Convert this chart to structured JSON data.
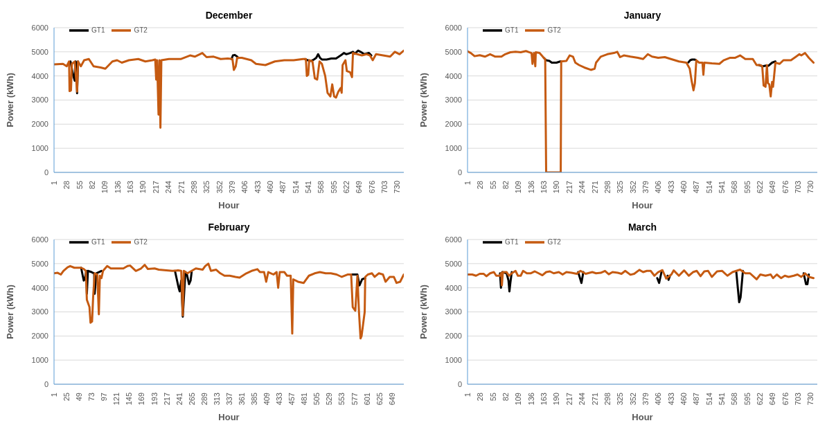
{
  "chart_data": [
    {
      "type": "line",
      "title": "December",
      "xlabel": "Hour",
      "ylabel": "Power (kWh)",
      "xlim": [
        1,
        744
      ],
      "xticks": [
        1,
        28,
        55,
        82,
        109,
        136,
        163,
        190,
        217,
        244,
        271,
        298,
        325,
        352,
        379,
        406,
        433,
        460,
        487,
        514,
        541,
        568,
        595,
        622,
        649,
        676,
        703,
        730
      ],
      "ylim": [
        0,
        6000
      ],
      "yticks": [
        0,
        1000,
        2000,
        3000,
        4000,
        5000,
        6000
      ],
      "grid": "y",
      "legend": "top left",
      "series": [
        {
          "name": "GT1",
          "color": "#000000",
          "x": [
            36,
            42,
            45,
            47,
            49,
            50,
            52,
            60,
            378,
            381,
            385,
            390,
            393,
            450,
            534,
            540,
            547,
            553,
            558,
            562,
            566,
            570,
            580,
            590,
            600,
            610,
            617,
            622,
            630,
            636,
            640,
            647,
            652,
            660,
            670,
            675
          ],
          "values": [
            4600,
            4000,
            3800,
            4600,
            4500,
            3280,
            4600,
            null,
            4700,
            4850,
            4870,
            4800,
            4750,
            null,
            4700,
            4650,
            4620,
            4680,
            4750,
            4900,
            4750,
            4680,
            4680,
            4720,
            4720,
            4850,
            4950,
            4900,
            4950,
            5000,
            4920,
            5050,
            5000,
            4900,
            4950,
            4850
          ]
        },
        {
          "name": "GT2",
          "color": "#c55a11",
          "x": [
            1,
            20,
            28,
            33,
            34,
            37,
            39,
            45,
            50,
            52,
            58,
            65,
            75,
            85,
            100,
            110,
            125,
            135,
            145,
            160,
            180,
            195,
            210,
            216,
            218,
            220,
            223,
            225,
            227,
            229,
            245,
            270,
            290,
            300,
            316,
            325,
            340,
            355,
            370,
            380,
            383,
            387,
            390,
            400,
            420,
            430,
            450,
            470,
            490,
            510,
            530,
            536,
            538,
            541,
            543,
            550,
            555,
            560,
            565,
            570,
            577,
            582,
            588,
            592,
            596,
            600,
            605,
            610,
            612,
            614,
            620,
            623,
            630,
            634,
            636,
            645,
            655,
            665,
            672,
            678,
            685,
            700,
            715,
            725,
            735,
            744
          ],
          "values": [
            4480,
            4500,
            4400,
            4600,
            3370,
            3400,
            4500,
            4600,
            3350,
            4600,
            4400,
            4650,
            4700,
            4400,
            4350,
            4300,
            4600,
            4650,
            4550,
            4650,
            4700,
            4600,
            4650,
            4680,
            3850,
            4650,
            2400,
            4650,
            1850,
            4650,
            4700,
            4700,
            4850,
            4800,
            4950,
            4780,
            4800,
            4700,
            4720,
            4700,
            4250,
            4400,
            4750,
            4750,
            4650,
            4500,
            4450,
            4600,
            4650,
            4650,
            4700,
            4700,
            4000,
            4050,
            4650,
            4600,
            3900,
            3850,
            4600,
            4500,
            4000,
            3300,
            3150,
            3650,
            3150,
            3100,
            3350,
            3500,
            3300,
            4450,
            4650,
            4200,
            4150,
            3950,
            4950,
            4900,
            4850,
            4900,
            4850,
            4650,
            4900,
            4850,
            4800,
            5000,
            4900,
            5050
          ]
        }
      ]
    },
    {
      "type": "line",
      "title": "January",
      "xlabel": "Hour",
      "ylabel": "Power (kWh)",
      "xlim": [
        1,
        744
      ],
      "xticks": [
        1,
        28,
        55,
        82,
        109,
        136,
        163,
        190,
        217,
        244,
        271,
        298,
        325,
        352,
        379,
        406,
        433,
        460,
        487,
        514,
        541,
        568,
        595,
        622,
        649,
        676,
        703,
        730
      ],
      "ylim": [
        0,
        6000
      ],
      "yticks": [
        0,
        1000,
        2000,
        3000,
        4000,
        5000,
        6000
      ],
      "grid": "y",
      "legend": "top left",
      "series": [
        {
          "name": "GT1",
          "color": "#000000",
          "x": [
            163,
            168,
            175,
            180,
            190,
            198,
            200,
            300,
            470,
            474,
            478,
            483,
            486,
            550,
            620,
            628,
            635,
            640,
            648,
            655
          ],
          "values": [
            4750,
            4650,
            4620,
            4550,
            4550,
            4600,
            4600,
            null,
            4560,
            4650,
            4680,
            4680,
            4660,
            null,
            4450,
            4400,
            4430,
            4420,
            4550,
            4600
          ]
        },
        {
          "name": "GT2",
          "color": "#c55a11",
          "x": [
            1,
            8,
            16,
            27,
            38,
            49,
            60,
            73,
            81,
            92,
            103,
            114,
            125,
            137,
            139,
            142,
            145,
            146,
            154,
            163,
            166,
            168,
            199,
            200,
            211,
            218,
            225,
            230,
            238,
            249,
            263,
            271,
            274,
            284,
            298,
            312,
            319,
            325,
            333,
            347,
            363,
            374,
            384,
            393,
            406,
            420,
            433,
            450,
            466,
            473,
            477,
            481,
            484,
            487,
            493,
            500,
            502,
            504,
            520,
            536,
            545,
            558,
            569,
            580,
            591,
            607,
            615,
            623,
            627,
            630,
            634,
            637,
            639,
            642,
            645,
            648,
            650,
            655,
            664,
            672,
            688,
            699,
            706,
            710,
            718,
            726,
            736
          ],
          "values": [
            5020,
            4950,
            4820,
            4860,
            4800,
            4900,
            4800,
            4800,
            4900,
            4980,
            5000,
            4980,
            5030,
            4950,
            4500,
            4950,
            4400,
            4980,
            4950,
            4750,
            4700,
            0,
            0,
            4600,
            4620,
            4850,
            4800,
            4550,
            4450,
            4350,
            4250,
            4300,
            4550,
            4800,
            4900,
            4950,
            5000,
            4780,
            4850,
            4800,
            4750,
            4700,
            4900,
            4800,
            4750,
            4780,
            4700,
            4600,
            4550,
            4300,
            3800,
            3400,
            3700,
            4650,
            4550,
            4550,
            4050,
            4550,
            4520,
            4500,
            4650,
            4750,
            4750,
            4850,
            4700,
            4700,
            4450,
            4450,
            4400,
            3600,
            3550,
            4450,
            3700,
            3650,
            3150,
            3750,
            3550,
            4550,
            4500,
            4650,
            4650,
            4800,
            4900,
            4850,
            4950,
            4750,
            4550
          ]
        }
      ]
    },
    {
      "type": "line",
      "title": "February",
      "xlabel": "Hour",
      "ylabel": "Power (kWh)",
      "xlim": [
        1,
        672
      ],
      "xticks": [
        1,
        25,
        49,
        73,
        97,
        121,
        145,
        169,
        193,
        217,
        241,
        265,
        289,
        313,
        337,
        361,
        385,
        409,
        433,
        457,
        481,
        505,
        529,
        553,
        577,
        601,
        625,
        649
      ],
      "ylim": [
        0,
        6000
      ],
      "yticks": [
        0,
        1000,
        2000,
        3000,
        4000,
        5000,
        6000
      ],
      "grid": "y",
      "legend": "top left",
      "series": [
        {
          "name": "GT1",
          "color": "#000000",
          "x": [
            53,
            58,
            60,
            63,
            64,
            66,
            73,
            78,
            79,
            82,
            92,
            150,
            233,
            240,
            242,
            245,
            248,
            253,
            256,
            260,
            263,
            265,
            400,
            571,
            583,
            587,
            592,
            598
          ],
          "values": [
            4830,
            4300,
            4350,
            4700,
            3750,
            4700,
            4650,
            4600,
            3750,
            4600,
            4700,
            null,
            4700,
            4000,
            3850,
            4300,
            2800,
            4650,
            4550,
            4150,
            4300,
            4650,
            null,
            4550,
            4550,
            4100,
            4350,
            4400
          ]
        },
        {
          "name": "GT2",
          "color": "#c55a11",
          "x": [
            1,
            8,
            14,
            19,
            27,
            32,
            40,
            53,
            58,
            62,
            64,
            69,
            71,
            74,
            76,
            79,
            84,
            87,
            89,
            92,
            95,
            103,
            110,
            124,
            134,
            142,
            147,
            158,
            168,
            175,
            181,
            194,
            202,
            213,
            228,
            239,
            245,
            248,
            250,
            257,
            265,
            273,
            286,
            291,
            297,
            302,
            312,
            320,
            328,
            338,
            349,
            357,
            370,
            380,
            391,
            396,
            404,
            408,
            412,
            422,
            428,
            431,
            434,
            443,
            448,
            455,
            458,
            460,
            469,
            480,
            485,
            490,
            501,
            511,
            522,
            532,
            543,
            553,
            564,
            571,
            574,
            579,
            583,
            586,
            589,
            591,
            594,
            597,
            598,
            603,
            611,
            616,
            624,
            632,
            637,
            645,
            653,
            658,
            665,
            672
          ],
          "values": [
            4600,
            4620,
            4550,
            4700,
            4850,
            4900,
            4830,
            4830,
            4780,
            4700,
            3500,
            3200,
            2550,
            2600,
            3600,
            4600,
            4550,
            2900,
            4500,
            4400,
            4700,
            4900,
            4800,
            4800,
            4800,
            4900,
            4920,
            4700,
            4800,
            4950,
            4780,
            4800,
            4750,
            4730,
            4700,
            4720,
            4700,
            2850,
            4700,
            4600,
            4700,
            4800,
            4750,
            4900,
            5000,
            4700,
            4750,
            4600,
            4500,
            4500,
            4450,
            4420,
            4600,
            4700,
            4770,
            4650,
            4650,
            4250,
            4650,
            4550,
            4650,
            4000,
            4650,
            4650,
            4500,
            4500,
            2100,
            4350,
            4250,
            4200,
            4350,
            4500,
            4600,
            4650,
            4600,
            4600,
            4550,
            4450,
            4550,
            4550,
            3200,
            3050,
            4500,
            3000,
            1900,
            2000,
            2500,
            3000,
            4450,
            4550,
            4600,
            4450,
            4600,
            4550,
            4250,
            4450,
            4450,
            4200,
            4250,
            4550
          ]
        }
      ]
    },
    {
      "type": "line",
      "title": "March",
      "xlabel": "Hour",
      "ylabel": "Power (kWh)",
      "xlim": [
        1,
        744
      ],
      "xticks": [
        1,
        28,
        55,
        82,
        109,
        136,
        163,
        190,
        217,
        244,
        271,
        298,
        325,
        352,
        379,
        406,
        433,
        460,
        487,
        514,
        541,
        568,
        595,
        622,
        649,
        676,
        703,
        730
      ],
      "ylim": [
        0,
        6000
      ],
      "yticks": [
        0,
        1000,
        2000,
        3000,
        4000,
        5000,
        6000
      ],
      "grid": "y",
      "legend": "top left",
      "series": [
        {
          "name": "GT1",
          "color": "#000000",
          "x": [
            70,
            72,
            75,
            84,
            88,
            90,
            92,
            95,
            150,
            236,
            243,
            247,
            300,
            404,
            408,
            413,
            420,
            426,
            428,
            431,
            500,
            572,
            578,
            581,
            586,
            650,
            715,
            720,
            723,
            726
          ],
          "values": [
            4600,
            4000,
            4650,
            4600,
            4300,
            3850,
            4200,
            4650,
            null,
            4650,
            4200,
            4650,
            null,
            4400,
            4200,
            4650,
            null,
            4500,
            4330,
            4500,
            null,
            4650,
            3400,
            3600,
            4700,
            null,
            4600,
            4150,
            4150,
            4550
          ]
        },
        {
          "name": "GT2",
          "color": "#c55a11",
          "x": [
            1,
            11,
            19,
            27,
            35,
            41,
            49,
            57,
            62,
            70,
            73,
            74,
            76,
            84,
            89,
            95,
            103,
            108,
            114,
            119,
            127,
            135,
            144,
            152,
            160,
            168,
            176,
            184,
            195,
            203,
            211,
            222,
            233,
            241,
            252,
            266,
            274,
            284,
            293,
            301,
            309,
            320,
            328,
            336,
            347,
            355,
            366,
            374,
            382,
            390,
            398,
            406,
            415,
            423,
            434,
            439,
            450,
            461,
            471,
            480,
            488,
            496,
            504,
            512,
            520,
            531,
            542,
            553,
            564,
            580,
            591,
            601,
            615,
            623,
            634,
            645,
            650,
            658,
            667,
            675,
            683,
            694,
            702,
            710,
            718,
            726,
            736
          ],
          "values": [
            4550,
            4550,
            4500,
            4580,
            4580,
            4480,
            4600,
            4650,
            4500,
            4500,
            4620,
            4100,
            4650,
            4650,
            4500,
            4600,
            4700,
            4500,
            4500,
            4700,
            4600,
            4600,
            4680,
            4600,
            4520,
            4650,
            4680,
            4600,
            4650,
            4550,
            4650,
            4620,
            4580,
            4700,
            4580,
            4650,
            4600,
            4620,
            4700,
            4560,
            4650,
            4620,
            4580,
            4700,
            4540,
            4580,
            4740,
            4650,
            4700,
            4700,
            4500,
            4650,
            4730,
            4380,
            4550,
            4720,
            4500,
            4720,
            4500,
            4650,
            4700,
            4480,
            4680,
            4700,
            4450,
            4680,
            4700,
            4500,
            4650,
            4750,
            4600,
            4600,
            4350,
            4550,
            4500,
            4550,
            4400,
            4550,
            4400,
            4500,
            4450,
            4500,
            4550,
            4450,
            4600,
            4450,
            4400
          ]
        }
      ]
    }
  ]
}
